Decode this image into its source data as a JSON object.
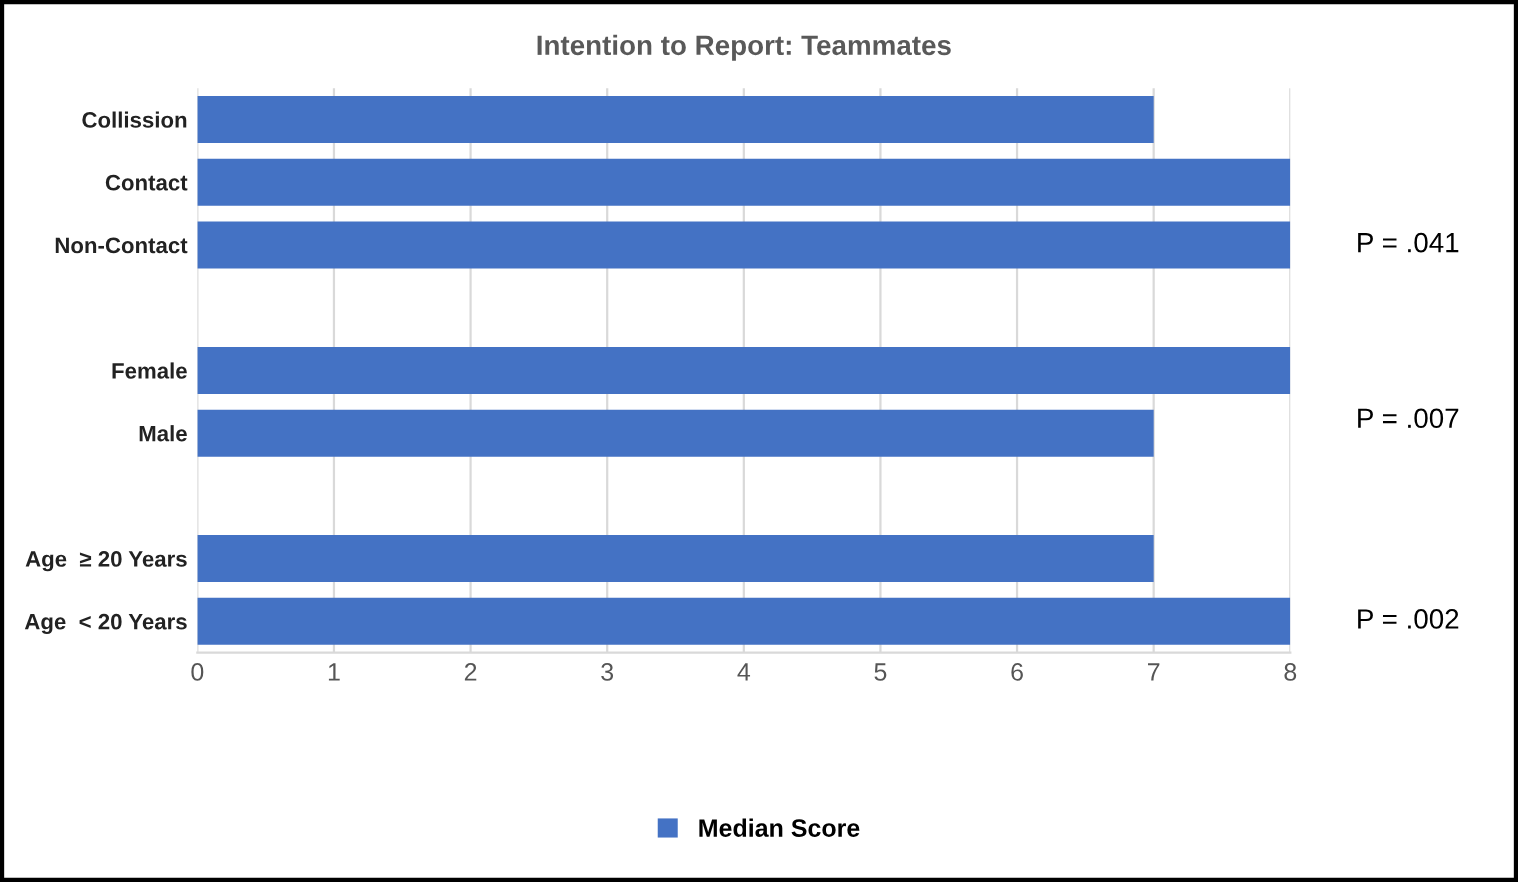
{
  "chart_data": {
    "type": "bar",
    "orientation": "horizontal",
    "title": "Intention to Report: Teammates",
    "categories": [
      "Collission",
      "Contact",
      "Non-Contact",
      null,
      "Female",
      "Male",
      null,
      "Age  ≥ 20 Years",
      "Age  < 20 Years"
    ],
    "series": [
      {
        "name": "Median Score",
        "color": "#4472c4",
        "values": [
          7,
          8,
          8,
          null,
          8,
          7,
          null,
          7,
          8
        ]
      }
    ],
    "xlim": [
      0,
      8
    ],
    "xticks": [
      0,
      1,
      2,
      3,
      4,
      5,
      6,
      7,
      8
    ],
    "grid": "x",
    "legend": "bottom",
    "annotations": [
      "P = .041",
      "P = .007",
      "P = .002"
    ]
  }
}
